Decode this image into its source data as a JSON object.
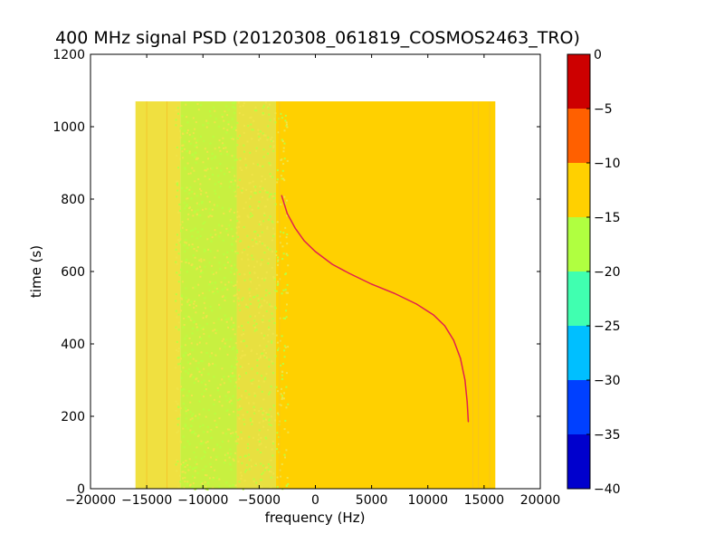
{
  "chart_data": {
    "type": "heatmap",
    "title": "400 MHz signal PSD (20120308_061819_COSMOS2463_TRO)",
    "xlabel": "frequency (Hz)",
    "ylabel": "time (s)",
    "xlim": [
      -20000,
      20000
    ],
    "ylim": [
      0,
      1200
    ],
    "x_ticks": [
      "−20000",
      "−15000",
      "−10000",
      "−5000",
      "0",
      "5000",
      "10000",
      "15000",
      "20000"
    ],
    "x_tick_values": [
      -20000,
      -15000,
      -10000,
      -5000,
      0,
      5000,
      10000,
      15000,
      20000
    ],
    "y_ticks": [
      "0",
      "200",
      "400",
      "600",
      "800",
      "1000",
      "1200"
    ],
    "y_tick_values": [
      0,
      200,
      400,
      600,
      800,
      1000,
      1200
    ],
    "data_extent": {
      "x": [
        -16000,
        16000
      ],
      "y": [
        0,
        1070
      ]
    },
    "colorbar": {
      "levels": [
        -40,
        -35,
        -30,
        -25,
        -20,
        -15,
        -10,
        -5,
        0
      ],
      "labels": [
        "−40",
        "−35",
        "−30",
        "−25",
        "−20",
        "−15",
        "−10",
        "−5",
        "0"
      ],
      "colors": [
        "#0000cd",
        "#0040ff",
        "#00bfff",
        "#40ffb0",
        "#b0ff40",
        "#ffd000",
        "#ff6000",
        "#cd0000"
      ]
    },
    "background_bands": [
      {
        "x": [
          -16000,
          -12000
        ],
        "level_color": "#f0e040"
      },
      {
        "x": [
          -12000,
          -7000
        ],
        "level_color": "#c8f040"
      },
      {
        "x": [
          -7000,
          -3500
        ],
        "level_color": "#e8e040"
      },
      {
        "x": [
          -3500,
          16000
        ],
        "level_color": "#ffd000"
      }
    ],
    "signal_trace": {
      "color": "#e02050",
      "points": [
        {
          "x": -3000,
          "y": 810
        },
        {
          "x": -2500,
          "y": 760
        },
        {
          "x": -1800,
          "y": 720
        },
        {
          "x": -1000,
          "y": 685
        },
        {
          "x": 0,
          "y": 655
        },
        {
          "x": 1500,
          "y": 620
        },
        {
          "x": 3000,
          "y": 595
        },
        {
          "x": 5000,
          "y": 565
        },
        {
          "x": 7000,
          "y": 540
        },
        {
          "x": 9000,
          "y": 510
        },
        {
          "x": 10500,
          "y": 480
        },
        {
          "x": 11500,
          "y": 450
        },
        {
          "x": 12300,
          "y": 410
        },
        {
          "x": 12900,
          "y": 360
        },
        {
          "x": 13300,
          "y": 300
        },
        {
          "x": 13500,
          "y": 240
        },
        {
          "x": 13600,
          "y": 185
        }
      ]
    }
  }
}
